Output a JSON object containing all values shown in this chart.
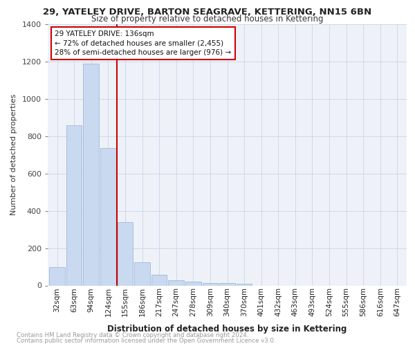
{
  "title1": "29, YATELEY DRIVE, BARTON SEAGRAVE, KETTERING, NN15 6BN",
  "title2": "Size of property relative to detached houses in Kettering",
  "xlabel": "Distribution of detached houses by size in Kettering",
  "ylabel": "Number of detached properties",
  "footnote1": "Contains HM Land Registry data © Crown copyright and database right 2024.",
  "footnote2": "Contains public sector information licensed under the Open Government Licence v3.0.",
  "categories": [
    "32sqm",
    "63sqm",
    "94sqm",
    "124sqm",
    "155sqm",
    "186sqm",
    "217sqm",
    "247sqm",
    "278sqm",
    "309sqm",
    "340sqm",
    "370sqm",
    "401sqm",
    "432sqm",
    "463sqm",
    "493sqm",
    "524sqm",
    "555sqm",
    "586sqm",
    "616sqm",
    "647sqm"
  ],
  "values": [
    100,
    860,
    1190,
    735,
    340,
    125,
    58,
    28,
    20,
    14,
    13,
    10,
    0,
    0,
    0,
    0,
    0,
    0,
    0,
    0,
    0
  ],
  "bar_color": "#c9d9f0",
  "bar_edge_color": "#a0b8d8",
  "vline_x": 3.5,
  "vline_color": "#cc0000",
  "annotation_line1": "29 YATELEY DRIVE: 136sqm",
  "annotation_line2": "← 72% of detached houses are smaller (2,455)",
  "annotation_line3": "28% of semi-detached houses are larger (976) →",
  "annotation_box_color": "#ffffff",
  "annotation_box_edge": "#cc0000",
  "ylim": [
    0,
    1400
  ],
  "yticks": [
    0,
    200,
    400,
    600,
    800,
    1000,
    1200,
    1400
  ],
  "grid_color": "#d0d8e8",
  "bg_color": "#eef2f8",
  "title1_fontsize": 9.5,
  "title2_fontsize": 8.5,
  "xlabel_fontsize": 8.5,
  "ylabel_fontsize": 8,
  "tick_fontsize": 7.5,
  "footnote_fontsize": 6.2
}
